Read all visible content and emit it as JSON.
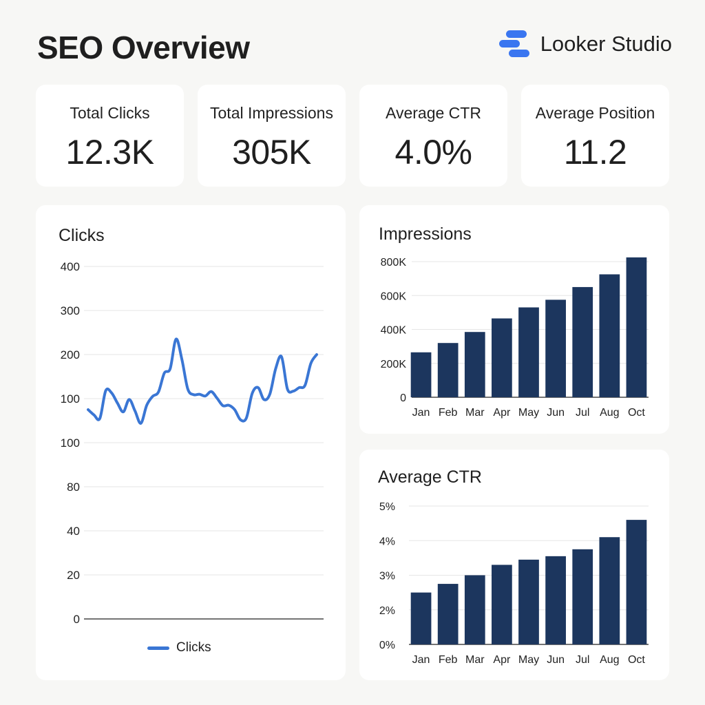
{
  "header": {
    "title": "SEO Overview",
    "brand": "Looker Studio"
  },
  "colors": {
    "background": "#f7f7f5",
    "card": "#ffffff",
    "line": "#3a76d4",
    "bar": "#1c365e",
    "brand_blue": "#3a76f0",
    "grid": "#e6e6e6"
  },
  "kpis": [
    {
      "label": "Total Clicks",
      "value": "12.3K"
    },
    {
      "label": "Total Impressions",
      "value": "305K"
    },
    {
      "label": "Average CTR",
      "value": "4.0%"
    },
    {
      "label": "Average Position",
      "value": "11.2"
    }
  ],
  "chart_data": [
    {
      "type": "line",
      "title": "Clicks",
      "yticks": [
        "400",
        "300",
        "200",
        "100",
        "100",
        "80",
        "40",
        "20",
        "0"
      ],
      "y_note": "tick labels printed as shown; values below are read in label units of the upper scale band",
      "series": [
        {
          "name": "Clicks",
          "values": [
            75,
            63,
            55,
            118,
            113,
            90,
            70,
            98,
            72,
            44,
            85,
            105,
            115,
            158,
            168,
            235,
            189,
            122,
            109,
            110,
            106,
            116,
            101,
            84,
            85,
            75,
            52,
            56,
            112,
            125,
            98,
            110,
            168,
            195,
            122,
            117,
            125,
            130,
            180,
            200
          ]
        }
      ],
      "legend": "bottom",
      "grid": true
    },
    {
      "type": "bar",
      "title": "Impressions",
      "categories": [
        "Jan",
        "Feb",
        "Mar",
        "Apr",
        "May",
        "Jun",
        "Jul",
        "Aug",
        "Oct"
      ],
      "values": [
        265000,
        320000,
        385000,
        465000,
        530000,
        575000,
        650000,
        725000,
        825000
      ],
      "yticks": [
        "0",
        "200K",
        "400K",
        "600K",
        "800K"
      ],
      "ylim": [
        0,
        800000
      ],
      "grid": true
    },
    {
      "type": "bar",
      "title": "Average CTR",
      "categories": [
        "Jan",
        "Feb",
        "Mar",
        "Apr",
        "May",
        "Jun",
        "Jul",
        "Aug",
        "Oct"
      ],
      "values": [
        2.5,
        2.75,
        3.0,
        3.3,
        3.45,
        3.55,
        3.75,
        4.1,
        4.6
      ],
      "yticks": [
        "0%",
        "2%",
        "3%",
        "4%",
        "5%"
      ],
      "ylim": [
        0,
        5
      ],
      "grid": true
    }
  ]
}
